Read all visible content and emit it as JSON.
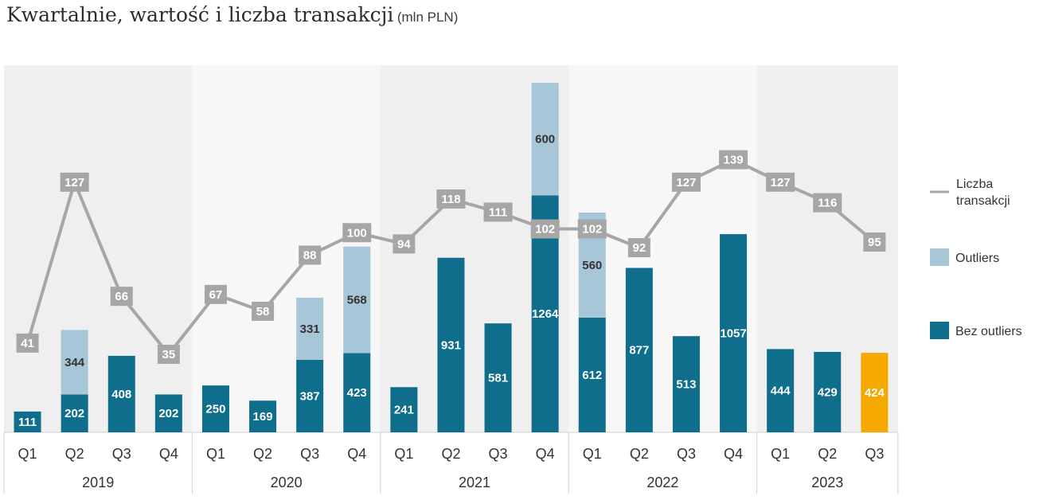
{
  "title": "Kwartalnie, wartość i liczba transakcji",
  "title_unit": "(mln PLN)",
  "chart_data": {
    "type": "bar",
    "stacked": true,
    "groups": [
      {
        "year": "2019",
        "quarters": [
          "Q1",
          "Q2",
          "Q3",
          "Q4"
        ]
      },
      {
        "year": "2020",
        "quarters": [
          "Q1",
          "Q2",
          "Q3",
          "Q4"
        ]
      },
      {
        "year": "2021",
        "quarters": [
          "Q1",
          "Q2",
          "Q3",
          "Q4"
        ]
      },
      {
        "year": "2022",
        "quarters": [
          "Q1",
          "Q2",
          "Q3",
          "Q4"
        ]
      },
      {
        "year": "2023",
        "quarters": [
          "Q1",
          "Q2",
          "Q3"
        ]
      }
    ],
    "series": [
      {
        "name": "Bez outliers",
        "color": "#0f6e8c",
        "values": [
          111,
          202,
          408,
          202,
          250,
          169,
          387,
          423,
          241,
          931,
          581,
          1264,
          612,
          877,
          513,
          1057,
          444,
          429,
          424
        ]
      },
      {
        "name": "Outliers",
        "color": "#a7c6d8",
        "values": [
          null,
          344,
          null,
          null,
          null,
          null,
          331,
          568,
          null,
          null,
          null,
          600,
          560,
          null,
          null,
          null,
          null,
          null,
          null
        ]
      }
    ],
    "line_series": {
      "name": "Liczba transakcji",
      "color": "#a6a6a6",
      "values": [
        41,
        127,
        66,
        35,
        67,
        58,
        88,
        100,
        94,
        118,
        111,
        102,
        102,
        92,
        127,
        139,
        127,
        116,
        95
      ]
    },
    "highlight": {
      "index": 18,
      "color": "#f5a800"
    },
    "legend_position": "right",
    "grid": false
  }
}
